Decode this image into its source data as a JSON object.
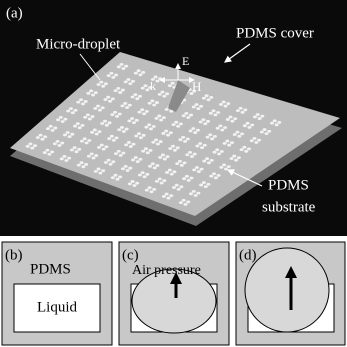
{
  "panel_a": {
    "label": "(a)",
    "droplet_label": "Micro-droplet",
    "cover_label": "PDMS cover",
    "substrate_label": [
      "PDMS",
      "substrate"
    ],
    "field_labels": {
      "e": "E",
      "k": "k",
      "h": "H"
    }
  },
  "panel_b": {
    "label": "(b)",
    "material": "PDMS",
    "liquid": "Liquid"
  },
  "panel_c": {
    "label": "(c)",
    "annotation": "Air pressure"
  },
  "panel_d": {
    "label": "(d)"
  }
}
